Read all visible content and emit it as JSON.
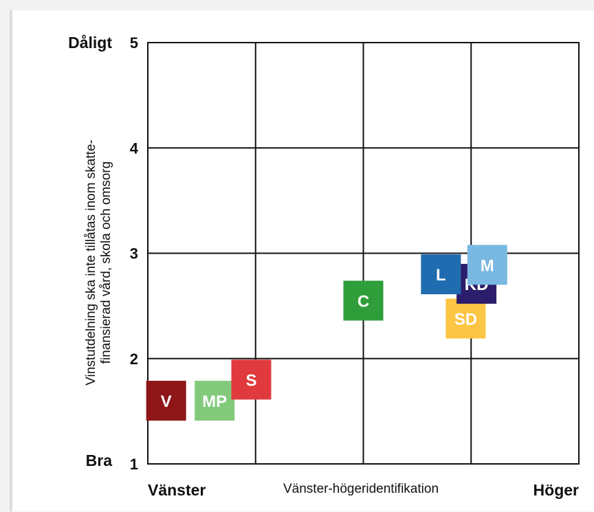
{
  "chart_data": {
    "type": "scatter",
    "x_axis": {
      "label": "Vänster-högeridentifikation",
      "left_label": "Vänster",
      "right_label": "Höger",
      "lim": [
        0,
        4
      ],
      "grid_lines": [
        1,
        2,
        3
      ]
    },
    "y_axis": {
      "label_line1": "Vinstutdelning ska inte tillåtas inom skatte-",
      "label_line2": "finansierad vård, skola och omsorg",
      "ticks": [
        "1",
        "2",
        "3",
        "4",
        "5"
      ],
      "lim": [
        1,
        5
      ],
      "top_label": "Dåligt",
      "bottom_label": "Bra"
    },
    "grid": true,
    "points": [
      {
        "label": "V",
        "x": 0.17,
        "y": 1.6,
        "color": "#8e1619"
      },
      {
        "label": "MP",
        "x": 0.62,
        "y": 1.6,
        "color": "#83c97c"
      },
      {
        "label": "S",
        "x": 0.96,
        "y": 1.8,
        "color": "#e03a3e"
      },
      {
        "label": "C",
        "x": 2.0,
        "y": 2.55,
        "color": "#2f9e3a"
      },
      {
        "label": "SD",
        "x": 2.95,
        "y": 2.38,
        "color": "#fcc543"
      },
      {
        "label": "KD",
        "x": 3.05,
        "y": 2.71,
        "color": "#2b1d6b"
      },
      {
        "label": "L",
        "x": 2.72,
        "y": 2.8,
        "color": "#1f6cb0"
      },
      {
        "label": "M",
        "x": 3.15,
        "y": 2.89,
        "color": "#79b8e2"
      }
    ]
  }
}
